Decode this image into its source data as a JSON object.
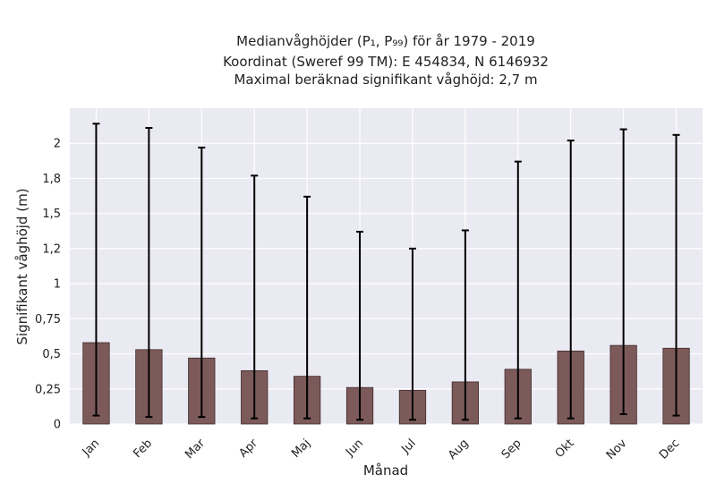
{
  "chart_data": {
    "type": "bar",
    "title_lines": [
      "Medianvåghöjder (P₁, P₉₉) för år 1979 - 2019",
      "Koordinat (Sweref 99 TM): E 454834, N 6146932",
      "Maximal beräknad signifikant våghöjd: 2,7 m"
    ],
    "xlabel": "Månad",
    "ylabel": "Signifikant våghöjd (m)",
    "categories": [
      "Jan",
      "Feb",
      "Mar",
      "Apr",
      "Maj",
      "Jun",
      "Jul",
      "Aug",
      "Sep",
      "Okt",
      "Nov",
      "Dec"
    ],
    "series": [
      {
        "values": [
          0.58,
          0.53,
          0.47,
          0.38,
          0.34,
          0.26,
          0.24,
          0.3,
          0.39,
          0.52,
          0.56,
          0.54
        ],
        "error_low": [
          0.06,
          0.05,
          0.05,
          0.04,
          0.04,
          0.03,
          0.03,
          0.03,
          0.04,
          0.04,
          0.07,
          0.06
        ],
        "error_high": [
          2.14,
          2.11,
          1.97,
          1.77,
          1.62,
          1.37,
          1.25,
          1.38,
          1.87,
          2.02,
          2.1,
          2.06
        ]
      }
    ],
    "yticks": [
      0,
      0.25,
      0.5,
      0.75,
      1,
      1.25,
      1.5,
      1.75,
      2
    ],
    "ytick_labels": [
      "0",
      "0,25",
      "0,5",
      "0,75",
      "1",
      "1,2",
      "1,5",
      "1,8",
      "2"
    ],
    "ylim": [
      0,
      2.25
    ],
    "grid": true,
    "colors": {
      "bar": "#7d5a5a",
      "bar_edge": "#3d2a2a",
      "error": "#000000",
      "plot_bg": "#eaeaf2",
      "grid": "#ffffff",
      "text": "#222222"
    }
  }
}
